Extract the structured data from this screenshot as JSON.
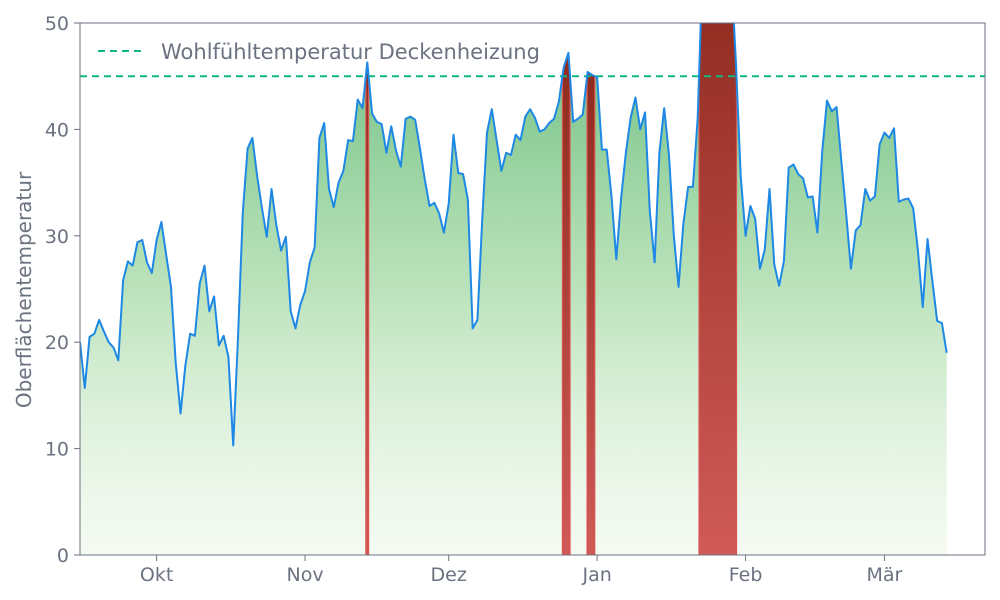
{
  "chart_data": {
    "type": "area",
    "title": "",
    "xlabel": "",
    "ylabel": "Oberflächentemperatur",
    "ylim": [
      0,
      50
    ],
    "yticks": [
      0,
      10,
      20,
      30,
      40,
      50
    ],
    "xlim": [
      "2023-09-15",
      "2024-03-22"
    ],
    "xticks": [
      {
        "date": "2023-10-01",
        "label": "Okt"
      },
      {
        "date": "2023-11-01",
        "label": "Nov"
      },
      {
        "date": "2023-12-01",
        "label": "Dez"
      },
      {
        "date": "2024-01-01",
        "label": "Jan"
      },
      {
        "date": "2024-02-01",
        "label": "Feb"
      },
      {
        "date": "2024-03-01",
        "label": "Mär"
      }
    ],
    "grid": false,
    "legend": "top-left",
    "threshold": {
      "name": "Wohlfühltemperatur Deckenheizung",
      "value": 45,
      "color": "#10b981",
      "style": "dashed"
    },
    "series": [
      {
        "line_color": "#1e88e5",
        "fill_color_top": "#4caf6a",
        "exceed_color": "#b93a2e",
        "x_start": "2023-09-15",
        "x_step_days": 1,
        "values": [
          20.0,
          15.7,
          20.5,
          20.8,
          22.1,
          21.0,
          20.0,
          19.5,
          18.3,
          25.8,
          27.6,
          27.2,
          29.4,
          29.6,
          27.5,
          26.5,
          29.6,
          31.3,
          28.2,
          25.2,
          18.0,
          13.3,
          17.8,
          20.8,
          20.6,
          25.5,
          27.2,
          22.9,
          24.3,
          19.7,
          20.6,
          18.6,
          10.3,
          20.5,
          32.2,
          38.2,
          39.2,
          35.6,
          32.6,
          29.9,
          34.4,
          31.0,
          28.6,
          29.9,
          22.9,
          21.3,
          23.5,
          24.8,
          27.5,
          28.9,
          39.2,
          40.6,
          34.4,
          32.7,
          35.0,
          36.1,
          39.0,
          38.9,
          42.8,
          42.0,
          46.3,
          41.5,
          40.7,
          40.5,
          37.8,
          40.3,
          38.0,
          36.5,
          41.0,
          41.2,
          40.9,
          38.2,
          35.3,
          32.8,
          33.1,
          32.1,
          30.3,
          33.0,
          39.5,
          35.9,
          35.8,
          33.4,
          21.3,
          22.1,
          31.5,
          39.7,
          41.9,
          39.0,
          36.1,
          37.8,
          37.6,
          39.5,
          39.0,
          41.2,
          41.9,
          41.1,
          39.8,
          40.0,
          40.6,
          41.0,
          42.6,
          45.8,
          47.2,
          40.7,
          41.0,
          41.4,
          45.4,
          45.1,
          44.9,
          38.1,
          38.1,
          33.7,
          27.8,
          33.5,
          37.8,
          41.1,
          43.0,
          40.0,
          41.6,
          32.3,
          27.5,
          37.8,
          42.0,
          37.6,
          30.1,
          25.2,
          31.1,
          34.6,
          34.6,
          41.1,
          55.0,
          55.0,
          55.0,
          55.0,
          55.0,
          55.0,
          55.0,
          46.1,
          35.5,
          30.0,
          32.8,
          31.6,
          26.9,
          28.7,
          34.4,
          27.3,
          25.3,
          27.6,
          36.4,
          36.7,
          35.8,
          35.4,
          33.6,
          33.7,
          30.3,
          37.9,
          42.7,
          41.7,
          42.1,
          37.0,
          32.1,
          26.9,
          30.5,
          31.0,
          34.4,
          33.3,
          33.7,
          38.6,
          39.7,
          39.2,
          40.1,
          33.2,
          33.4,
          33.5,
          32.6,
          28.6,
          23.3,
          29.7,
          25.8,
          22.0,
          21.8,
          19.0
        ]
      }
    ]
  }
}
